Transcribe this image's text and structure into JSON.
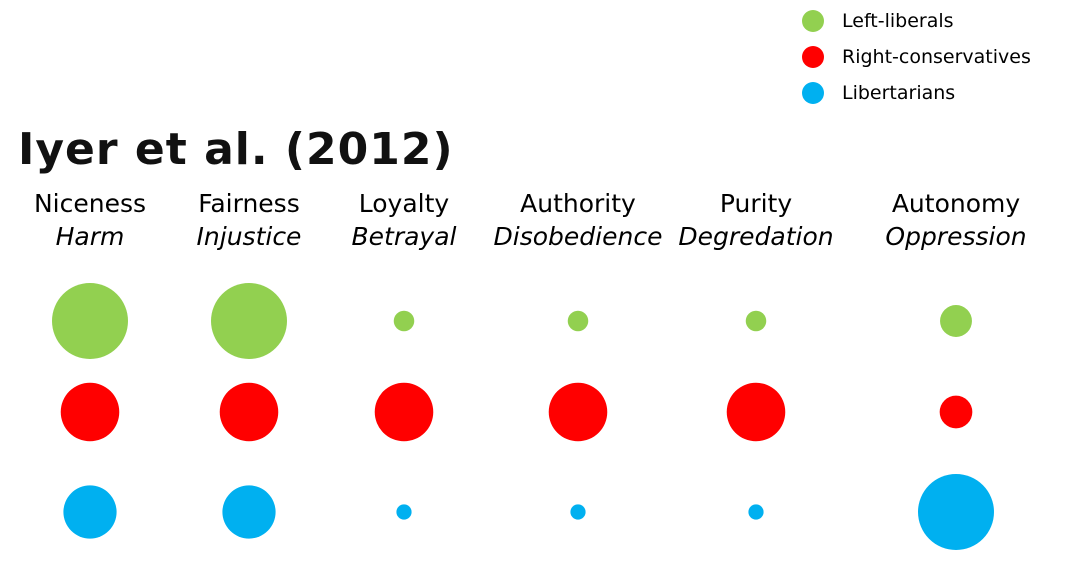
{
  "chart_data": {
    "type": "scatter",
    "title": "Iyer et al. (2012)",
    "categories": [
      {
        "name": "Niceness",
        "opposite": "Harm"
      },
      {
        "name": "Fairness",
        "opposite": "Injustice"
      },
      {
        "name": "Loyalty",
        "opposite": "Betrayal"
      },
      {
        "name": "Authority",
        "opposite": "Disobedience"
      },
      {
        "name": "Purity",
        "opposite": "Degredation"
      },
      {
        "name": "Autonomy",
        "opposite": "Oppression"
      }
    ],
    "series": [
      {
        "name": "Left-liberals",
        "color": "#92d050",
        "values": [
          1.0,
          1.0,
          0.27,
          0.27,
          0.27,
          0.42
        ]
      },
      {
        "name": "Right-conservatives",
        "color": "#ff0000",
        "values": [
          0.77,
          0.77,
          0.77,
          0.77,
          0.77,
          0.43
        ]
      },
      {
        "name": "Libertarians",
        "color": "#00b0f0",
        "values": [
          0.7,
          0.7,
          0.2,
          0.2,
          0.2,
          1.0
        ]
      }
    ],
    "value_meaning": "relative circle size",
    "legend_position": "top-right",
    "grid": false
  }
}
